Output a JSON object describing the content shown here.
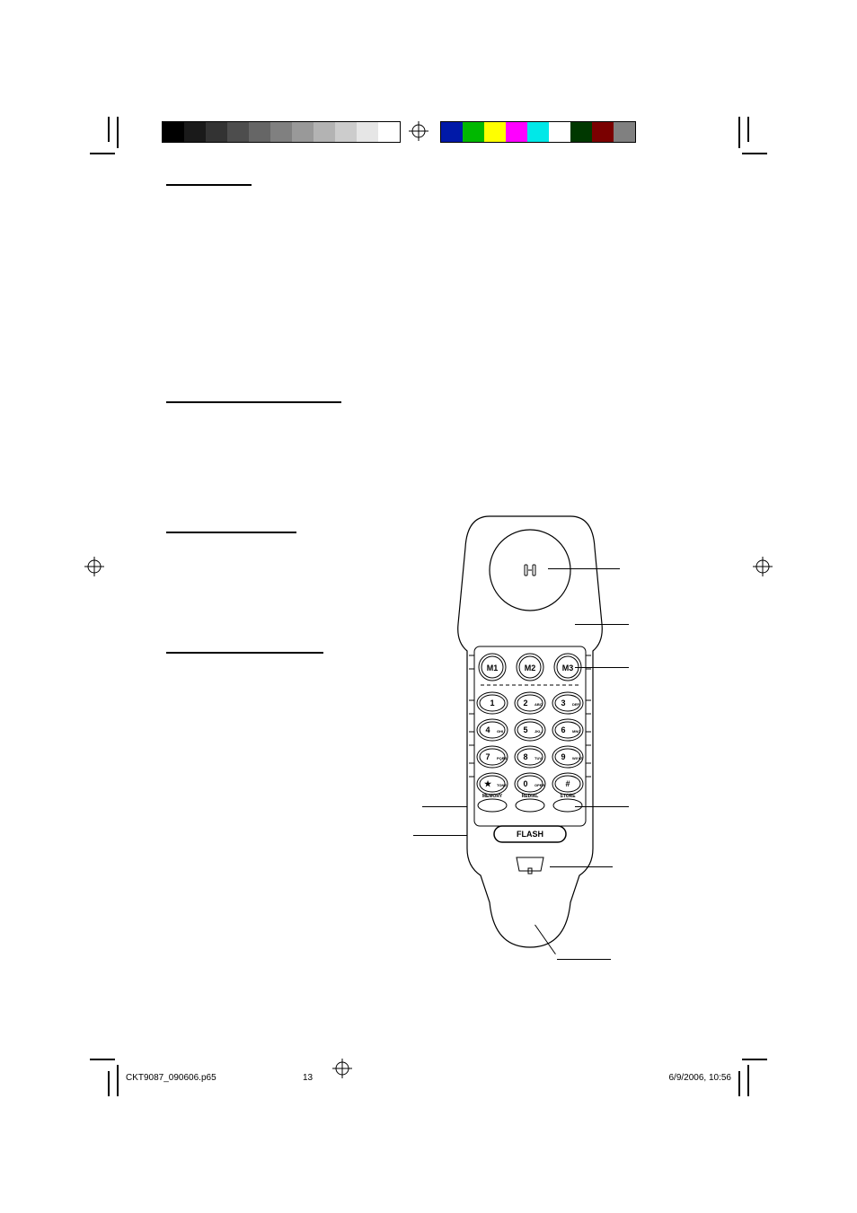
{
  "page": {
    "filename": "CKT9087_090606.p65",
    "page_number": "13",
    "datetime": "6/9/2006, 10:56"
  },
  "calibration": {
    "grayscale": [
      "#000000",
      "#1a1a1a",
      "#333333",
      "#4d4d4d",
      "#666666",
      "#808080",
      "#999999",
      "#b3b3b3",
      "#cccccc",
      "#e6e6e6",
      "#ffffff"
    ],
    "colors": [
      "#0019a8",
      "#00b800",
      "#ffff00",
      "#ff00ff",
      "#00e8e8",
      "#ffffff",
      "#003800",
      "#7a0000",
      "#808080"
    ]
  },
  "phone": {
    "memory_buttons": [
      "M1",
      "M2",
      "M3"
    ],
    "keypad": [
      {
        "num": "1",
        "sub": ""
      },
      {
        "num": "2",
        "sub": "ABC"
      },
      {
        "num": "3",
        "sub": "DEF"
      },
      {
        "num": "4",
        "sub": "GHI"
      },
      {
        "num": "5",
        "sub": "JKL"
      },
      {
        "num": "6",
        "sub": "MNO"
      },
      {
        "num": "7",
        "sub": "PQRS"
      },
      {
        "num": "8",
        "sub": "TUV"
      },
      {
        "num": "9",
        "sub": "WXYZ"
      },
      {
        "num": "★",
        "sub": "TONE"
      },
      {
        "num": "0",
        "sub": "OPER"
      },
      {
        "num": "#",
        "sub": ""
      }
    ],
    "func_labels": [
      "MEMORY",
      "REDIAL",
      "STORE"
    ],
    "flash_label": "FLASH"
  }
}
